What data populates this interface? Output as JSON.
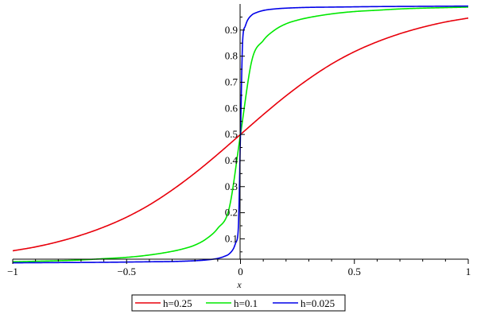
{
  "chart_data": {
    "type": "line",
    "title": "",
    "xlabel": "x",
    "ylabel": "",
    "xlim": [
      -1,
      1
    ],
    "ylim": [
      0.022,
      1
    ],
    "grid": false,
    "legend_position": "bottom",
    "x_ticks": [
      -1,
      -0.5,
      0,
      0.5,
      1
    ],
    "x_tick_labels": [
      "−1",
      "−0.5",
      "0",
      "0.5",
      "1"
    ],
    "y_ticks": [
      0.1,
      0.2,
      0.3,
      0.4,
      0.5,
      0.6,
      0.7,
      0.8,
      0.9
    ],
    "y_tick_labels": [
      "0.1",
      "0.2",
      "0.3",
      "0.4",
      "0.5",
      "0.6",
      "0.7",
      "0.8",
      "0.9"
    ],
    "series": [
      {
        "name": "h=0.25",
        "color": "#e8000b",
        "x": [
          -1,
          -0.9,
          -0.8,
          -0.7,
          -0.6,
          -0.5,
          -0.4,
          -0.3,
          -0.2,
          -0.1,
          0,
          0.1,
          0.2,
          0.3,
          0.4,
          0.5,
          0.6,
          0.7,
          0.8,
          0.9,
          1
        ],
        "y": [
          0.054,
          0.069,
          0.089,
          0.114,
          0.145,
          0.183,
          0.23,
          0.287,
          0.352,
          0.424,
          0.5,
          0.576,
          0.648,
          0.713,
          0.77,
          0.817,
          0.855,
          0.886,
          0.911,
          0.931,
          0.946
        ]
      },
      {
        "name": "h=0.1",
        "color": "#00e800",
        "x": [
          -1,
          -0.9,
          -0.8,
          -0.7,
          -0.6,
          -0.5,
          -0.4,
          -0.3,
          -0.25,
          -0.2,
          -0.15,
          -0.1,
          -0.05,
          0,
          0.05,
          0.1,
          0.15,
          0.2,
          0.25,
          0.3,
          0.4,
          0.5,
          0.6,
          0.7,
          0.8,
          0.9,
          1
        ],
        "y": [
          0.012,
          0.014,
          0.016,
          0.019,
          0.024,
          0.029,
          0.038,
          0.052,
          0.062,
          0.076,
          0.1,
          0.14,
          0.216,
          0.5,
          0.784,
          0.86,
          0.9,
          0.924,
          0.938,
          0.948,
          0.962,
          0.971,
          0.976,
          0.981,
          0.984,
          0.986,
          0.988
        ]
      },
      {
        "name": "h=0.025",
        "color": "#0000e8",
        "x": [
          -1,
          -0.8,
          -0.6,
          -0.4,
          -0.3,
          -0.2,
          -0.15,
          -0.1,
          -0.07,
          -0.05,
          -0.03,
          -0.02,
          -0.01,
          0,
          0.01,
          0.02,
          0.03,
          0.05,
          0.07,
          0.1,
          0.15,
          0.2,
          0.3,
          0.4,
          0.6,
          0.8,
          1
        ],
        "y": [
          0.008,
          0.009,
          0.01,
          0.012,
          0.013,
          0.016,
          0.019,
          0.025,
          0.033,
          0.042,
          0.064,
          0.087,
          0.133,
          0.5,
          0.867,
          0.913,
          0.936,
          0.958,
          0.967,
          0.975,
          0.981,
          0.984,
          0.987,
          0.988,
          0.99,
          0.991,
          0.992
        ]
      }
    ]
  }
}
